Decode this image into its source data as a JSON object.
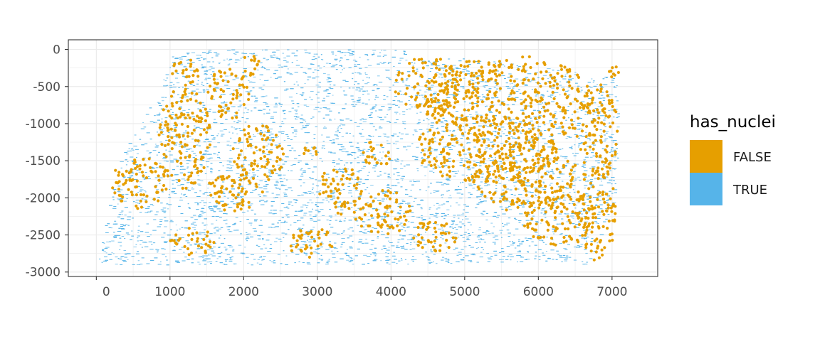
{
  "chart_data": {
    "type": "scatter",
    "title": "",
    "xlabel": "",
    "ylabel": "",
    "xlim": [
      -380,
      7620
    ],
    "ylim": [
      -3060,
      130
    ],
    "x_ticks": [
      0,
      1000,
      2000,
      3000,
      4000,
      5000,
      6000,
      7000
    ],
    "x_tick_labels": [
      "0",
      "1000",
      "2000",
      "3000",
      "4000",
      "5000",
      "6000",
      "7000"
    ],
    "y_ticks": [
      0,
      -500,
      -1000,
      -1500,
      -2000,
      -2500,
      -3000
    ],
    "y_tick_labels": [
      "0",
      "-500",
      "-1000",
      "-1500",
      "-2000",
      "-2500",
      "-3000"
    ],
    "grid": true,
    "legend": {
      "title": "has_nuclei",
      "position": "right",
      "entries": [
        {
          "label": "FALSE",
          "color": "#E69F00"
        },
        {
          "label": "TRUE",
          "color": "#56B4E9"
        }
      ]
    },
    "series": [
      {
        "name": "TRUE",
        "color": "#56B4E9",
        "region": {
          "x_range": [
            0,
            7100
          ],
          "y_range": [
            -2900,
            0
          ],
          "outline": [
            [
              1000,
              0
            ],
            [
              4100,
              0
            ],
            [
              4500,
              -40
            ],
            [
              7100,
              -380
            ],
            [
              7060,
              -1900
            ],
            [
              6700,
              -2900
            ],
            [
              6000,
              -2850
            ],
            [
              5000,
              -2880
            ],
            [
              4000,
              -2900
            ],
            [
              0,
              -2900
            ],
            [
              100,
              -2400
            ],
            [
              300,
              -1500
            ],
            [
              700,
              -800
            ],
            [
              1000,
              -200
            ]
          ],
          "density": "dense"
        }
      },
      {
        "name": "FALSE",
        "color": "#E69F00",
        "clusters": [
          {
            "x": 5600,
            "y": -700,
            "rx": 1150,
            "ry": 620
          },
          {
            "x": 5300,
            "y": -1350,
            "rx": 1000,
            "ry": 450
          },
          {
            "x": 5900,
            "y": -1800,
            "rx": 800,
            "ry": 400
          },
          {
            "x": 6300,
            "y": -2300,
            "rx": 500,
            "ry": 350
          },
          {
            "x": 6800,
            "y": -2200,
            "rx": 250,
            "ry": 650
          },
          {
            "x": 6800,
            "y": -1100,
            "rx": 280,
            "ry": 650
          },
          {
            "x": 4500,
            "y": -500,
            "rx": 450,
            "ry": 400
          },
          {
            "x": 1200,
            "y": -1200,
            "rx": 350,
            "ry": 700
          },
          {
            "x": 600,
            "y": -1800,
            "rx": 400,
            "ry": 350
          },
          {
            "x": 1900,
            "y": -1900,
            "rx": 400,
            "ry": 300
          },
          {
            "x": 2200,
            "y": -1400,
            "rx": 350,
            "ry": 400
          },
          {
            "x": 1800,
            "y": -600,
            "rx": 300,
            "ry": 350
          },
          {
            "x": 3900,
            "y": -2200,
            "rx": 400,
            "ry": 300
          },
          {
            "x": 3300,
            "y": -1900,
            "rx": 300,
            "ry": 350
          },
          {
            "x": 4600,
            "y": -2500,
            "rx": 300,
            "ry": 250
          },
          {
            "x": 2900,
            "y": -2600,
            "rx": 350,
            "ry": 200
          },
          {
            "x": 1300,
            "y": -2600,
            "rx": 300,
            "ry": 200
          },
          {
            "x": 2900,
            "y": -1400,
            "rx": 100,
            "ry": 100
          },
          {
            "x": 3800,
            "y": -1400,
            "rx": 200,
            "ry": 200
          },
          {
            "x": 1200,
            "y": -300,
            "rx": 200,
            "ry": 200
          },
          {
            "x": 2100,
            "y": -200,
            "rx": 150,
            "ry": 150
          },
          {
            "x": 7000,
            "y": -300,
            "rx": 100,
            "ry": 80
          }
        ]
      }
    ]
  }
}
